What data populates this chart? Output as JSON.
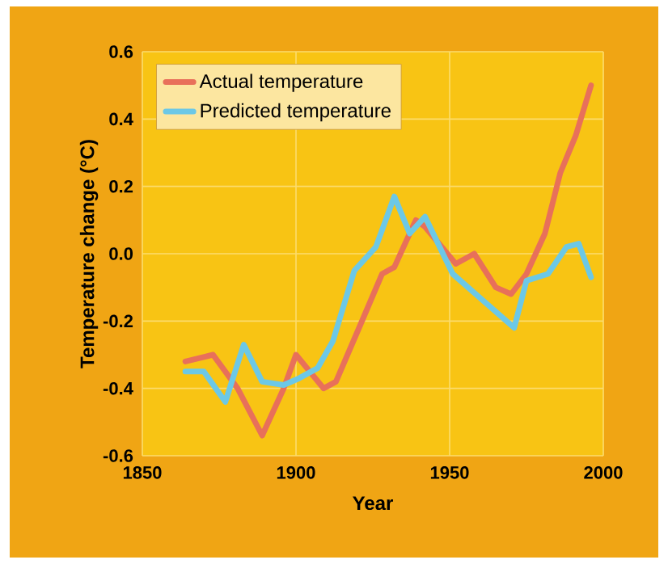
{
  "chart_data": {
    "type": "line",
    "xlabel": "Year",
    "ylabel": "Temperature change (°C)",
    "x": [
      1864,
      1873,
      1881,
      1889,
      1896,
      1900,
      1909,
      1913,
      1921,
      1928,
      1932,
      1939,
      1942,
      1952,
      1958,
      1965,
      1970,
      1975,
      1981,
      1986,
      1991,
      1996
    ],
    "series": [
      {
        "name": "Actual  temperature",
        "color": "#e8705a",
        "values": [
          -0.32,
          -0.3,
          -0.4,
          -0.54,
          -0.4,
          -0.3,
          -0.4,
          -0.38,
          -0.21,
          -0.06,
          -0.04,
          0.1,
          0.08,
          -0.03,
          0.0,
          -0.1,
          -0.12,
          -0.06,
          0.06,
          0.24,
          0.35,
          0.5
        ]
      },
      {
        "name": "Predicted temperature",
        "color": "#6cc8e6",
        "x": [
          1864,
          1870,
          1877,
          1883,
          1889,
          1896,
          1901,
          1907,
          1912,
          1919,
          1926,
          1932,
          1937,
          1942,
          1951,
          1961,
          1971,
          1975,
          1982,
          1988,
          1992,
          1996
        ],
        "values": [
          -0.35,
          -0.35,
          -0.44,
          -0.27,
          -0.38,
          -0.39,
          -0.37,
          -0.34,
          -0.26,
          -0.05,
          0.02,
          0.17,
          0.06,
          0.11,
          -0.06,
          -0.14,
          -0.22,
          -0.08,
          -0.06,
          0.02,
          0.03,
          -0.07
        ]
      }
    ],
    "xlim": [
      1850,
      2000
    ],
    "xticks": [
      1850,
      1900,
      1950,
      2000
    ],
    "ylim": [
      -0.6,
      0.6
    ],
    "yticks": [
      -0.6,
      -0.4,
      -0.2,
      {
        "value": 0,
        "label": "0.0"
      },
      0.2,
      0.4,
      0.6
    ],
    "grid": true,
    "legend": "top left",
    "marker": "none",
    "line_style": "solid"
  }
}
